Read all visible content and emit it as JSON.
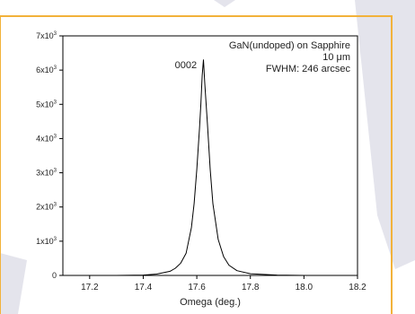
{
  "chart_data": {
    "type": "line",
    "xlabel": "Omega (deg.)",
    "ylabel": "",
    "xlim": [
      17.1,
      18.2
    ],
    "ylim": [
      0,
      7000
    ],
    "x_ticks": [
      {
        "value": 17.2,
        "label": "17.2"
      },
      {
        "value": 17.4,
        "label": "17.4"
      },
      {
        "value": 17.6,
        "label": "17.6"
      },
      {
        "value": 17.8,
        "label": "17.8"
      },
      {
        "value": 18.0,
        "label": "18.0"
      },
      {
        "value": 18.2,
        "label": "18.2"
      }
    ],
    "y_ticks": [
      {
        "value": 0,
        "base": "0",
        "exp": ""
      },
      {
        "value": 1000,
        "base": "1x10",
        "exp": "3"
      },
      {
        "value": 2000,
        "base": "2x10",
        "exp": "3"
      },
      {
        "value": 3000,
        "base": "3x10",
        "exp": "3"
      },
      {
        "value": 4000,
        "base": "4x10",
        "exp": "3"
      },
      {
        "value": 5000,
        "base": "5x10",
        "exp": "3"
      },
      {
        "value": 6000,
        "base": "6x10",
        "exp": "3"
      },
      {
        "value": 7000,
        "base": "7x10",
        "exp": "3"
      }
    ],
    "grid": false,
    "legend": [
      "GaN(undoped) on Sapphire",
      "10 μm",
      "FWHM: 246 arcsec"
    ],
    "legend_position": "top-right",
    "peak_label": "0002",
    "series": [
      {
        "color": "#000000",
        "x": [
          17.1,
          17.2,
          17.3,
          17.4,
          17.45,
          17.5,
          17.52,
          17.54,
          17.56,
          17.58,
          17.59,
          17.6,
          17.61,
          17.615,
          17.62,
          17.625,
          17.63,
          17.64,
          17.65,
          17.66,
          17.68,
          17.7,
          17.72,
          17.75,
          17.8,
          17.9,
          18.0,
          18.2
        ],
        "y": [
          0,
          0,
          0,
          10,
          40,
          120,
          210,
          360,
          650,
          1400,
          2100,
          3100,
          4300,
          5000,
          5850,
          6300,
          5600,
          4400,
          3100,
          2100,
          1050,
          550,
          300,
          140,
          50,
          10,
          0,
          0
        ]
      }
    ]
  }
}
